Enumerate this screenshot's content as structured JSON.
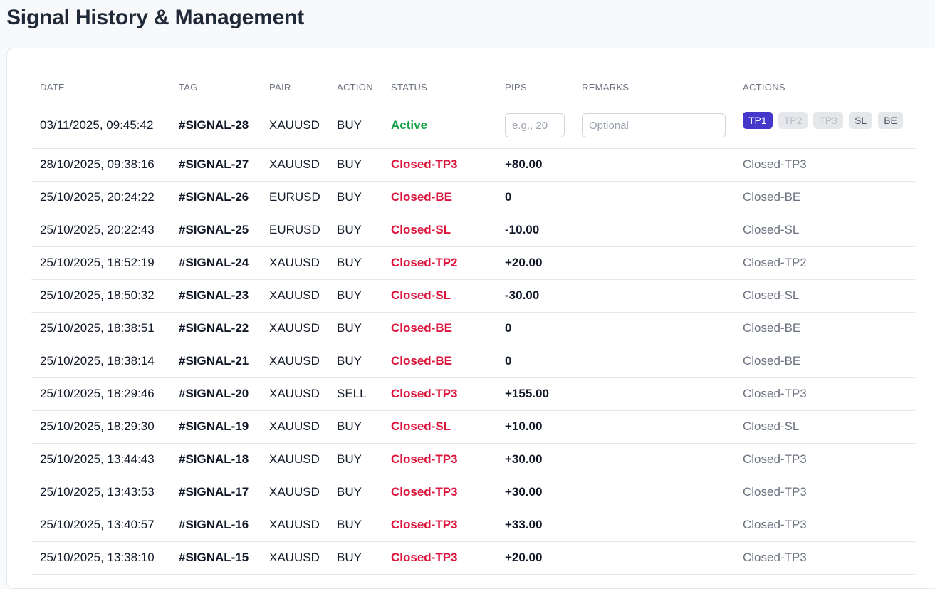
{
  "page": {
    "title": "Signal History & Management"
  },
  "table": {
    "headers": {
      "date": "DATE",
      "tag": "TAG",
      "pair": "PAIR",
      "action": "ACTION",
      "status": "STATUS",
      "pips": "PIPS",
      "remarks": "REMARKS",
      "actions": "ACTIONS"
    },
    "active_row": {
      "date": "03/11/2025, 09:45:42",
      "tag": "#SIGNAL-28",
      "pair": "XAUUSD",
      "action": "BUY",
      "status": "Active",
      "pips_placeholder": "e.g., 20",
      "remarks_placeholder": "Optional",
      "buttons": {
        "tp1": "TP1",
        "tp2": "TP2",
        "tp3": "TP3",
        "sl": "SL",
        "be": "BE"
      }
    },
    "rows": [
      {
        "date": "28/10/2025, 09:38:16",
        "tag": "#SIGNAL-27",
        "pair": "XAUUSD",
        "action": "BUY",
        "status": "Closed-TP3",
        "pips": "+80.00",
        "remarks": "",
        "result": "Closed-TP3"
      },
      {
        "date": "25/10/2025, 20:24:22",
        "tag": "#SIGNAL-26",
        "pair": "EURUSD",
        "action": "BUY",
        "status": "Closed-BE",
        "pips": "0",
        "remarks": "",
        "result": "Closed-BE"
      },
      {
        "date": "25/10/2025, 20:22:43",
        "tag": "#SIGNAL-25",
        "pair": "EURUSD",
        "action": "BUY",
        "status": "Closed-SL",
        "pips": "-10.00",
        "remarks": "",
        "result": "Closed-SL"
      },
      {
        "date": "25/10/2025, 18:52:19",
        "tag": "#SIGNAL-24",
        "pair": "XAUUSD",
        "action": "BUY",
        "status": "Closed-TP2",
        "pips": "+20.00",
        "remarks": "",
        "result": "Closed-TP2"
      },
      {
        "date": "25/10/2025, 18:50:32",
        "tag": "#SIGNAL-23",
        "pair": "XAUUSD",
        "action": "BUY",
        "status": "Closed-SL",
        "pips": "-30.00",
        "remarks": "",
        "result": "Closed-SL"
      },
      {
        "date": "25/10/2025, 18:38:51",
        "tag": "#SIGNAL-22",
        "pair": "XAUUSD",
        "action": "BUY",
        "status": "Closed-BE",
        "pips": "0",
        "remarks": "",
        "result": "Closed-BE"
      },
      {
        "date": "25/10/2025, 18:38:14",
        "tag": "#SIGNAL-21",
        "pair": "XAUUSD",
        "action": "BUY",
        "status": "Closed-BE",
        "pips": "0",
        "remarks": "",
        "result": "Closed-BE"
      },
      {
        "date": "25/10/2025, 18:29:46",
        "tag": "#SIGNAL-20",
        "pair": "XAUUSD",
        "action": "SELL",
        "status": "Closed-TP3",
        "pips": "+155.00",
        "remarks": "",
        "result": "Closed-TP3"
      },
      {
        "date": "25/10/2025, 18:29:30",
        "tag": "#SIGNAL-19",
        "pair": "XAUUSD",
        "action": "BUY",
        "status": "Closed-SL",
        "pips": "+10.00",
        "remarks": "",
        "result": "Closed-SL"
      },
      {
        "date": "25/10/2025, 13:44:43",
        "tag": "#SIGNAL-18",
        "pair": "XAUUSD",
        "action": "BUY",
        "status": "Closed-TP3",
        "pips": "+30.00",
        "remarks": "",
        "result": "Closed-TP3"
      },
      {
        "date": "25/10/2025, 13:43:53",
        "tag": "#SIGNAL-17",
        "pair": "XAUUSD",
        "action": "BUY",
        "status": "Closed-TP3",
        "pips": "+30.00",
        "remarks": "",
        "result": "Closed-TP3"
      },
      {
        "date": "25/10/2025, 13:40:57",
        "tag": "#SIGNAL-16",
        "pair": "XAUUSD",
        "action": "BUY",
        "status": "Closed-TP3",
        "pips": "+33.00",
        "remarks": "",
        "result": "Closed-TP3"
      },
      {
        "date": "25/10/2025, 13:38:10",
        "tag": "#SIGNAL-15",
        "pair": "XAUUSD",
        "action": "BUY",
        "status": "Closed-TP3",
        "pips": "+20.00",
        "remarks": "",
        "result": "Closed-TP3"
      }
    ]
  },
  "colors": {
    "active_status": "#16a34a",
    "closed_status": "#dc143c",
    "primary_button": "#4338ca"
  }
}
